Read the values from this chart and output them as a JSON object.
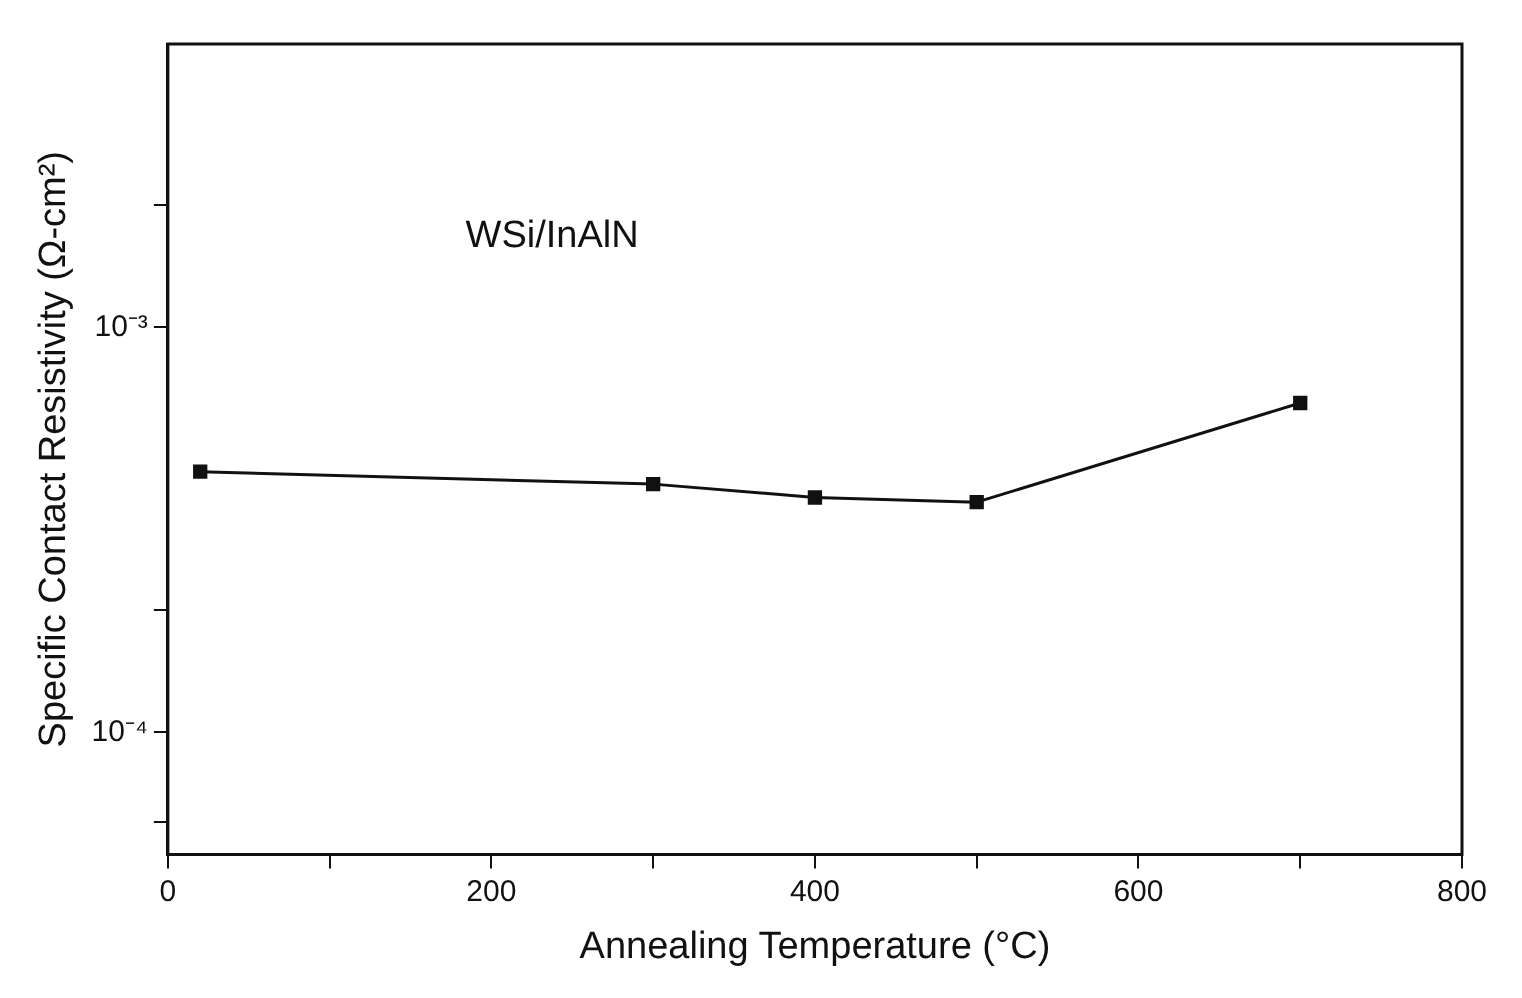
{
  "chart_data": {
    "type": "line",
    "xlabel": "Annealing Temperature (°C)",
    "ylabel": "Specific Contact Resistivity (Ω-cm²)",
    "annotations": [
      "WSi/InAlN"
    ],
    "series": [
      {
        "color": "#111111",
        "x": [
          20,
          300,
          400,
          500,
          700
        ],
        "values": [
          0.00044,
          0.00041,
          0.00038,
          0.00037,
          0.00065
        ]
      }
    ],
    "xlim": [
      0,
      800
    ],
    "xticks": [
      0,
      {
        "value": 100,
        "label": null
      },
      200,
      {
        "value": 300,
        "label": null
      },
      400,
      {
        "value": 500,
        "label": null
      },
      600,
      {
        "value": 700,
        "label": null
      },
      800
    ],
    "ylim": [
      5e-05,
      0.005
    ],
    "log": "y",
    "yticks": [
      {
        "value": 6e-05,
        "label": null
      },
      {
        "value": 0.0001,
        "label": "10⁻⁴"
      },
      {
        "value": 0.0002,
        "label": null
      },
      {
        "value": 0.001,
        "label": "10⁻³"
      },
      {
        "value": 0.002,
        "label": null
      }
    ],
    "grid": false,
    "legend": false,
    "marker": "square",
    "line_style": "solid"
  }
}
